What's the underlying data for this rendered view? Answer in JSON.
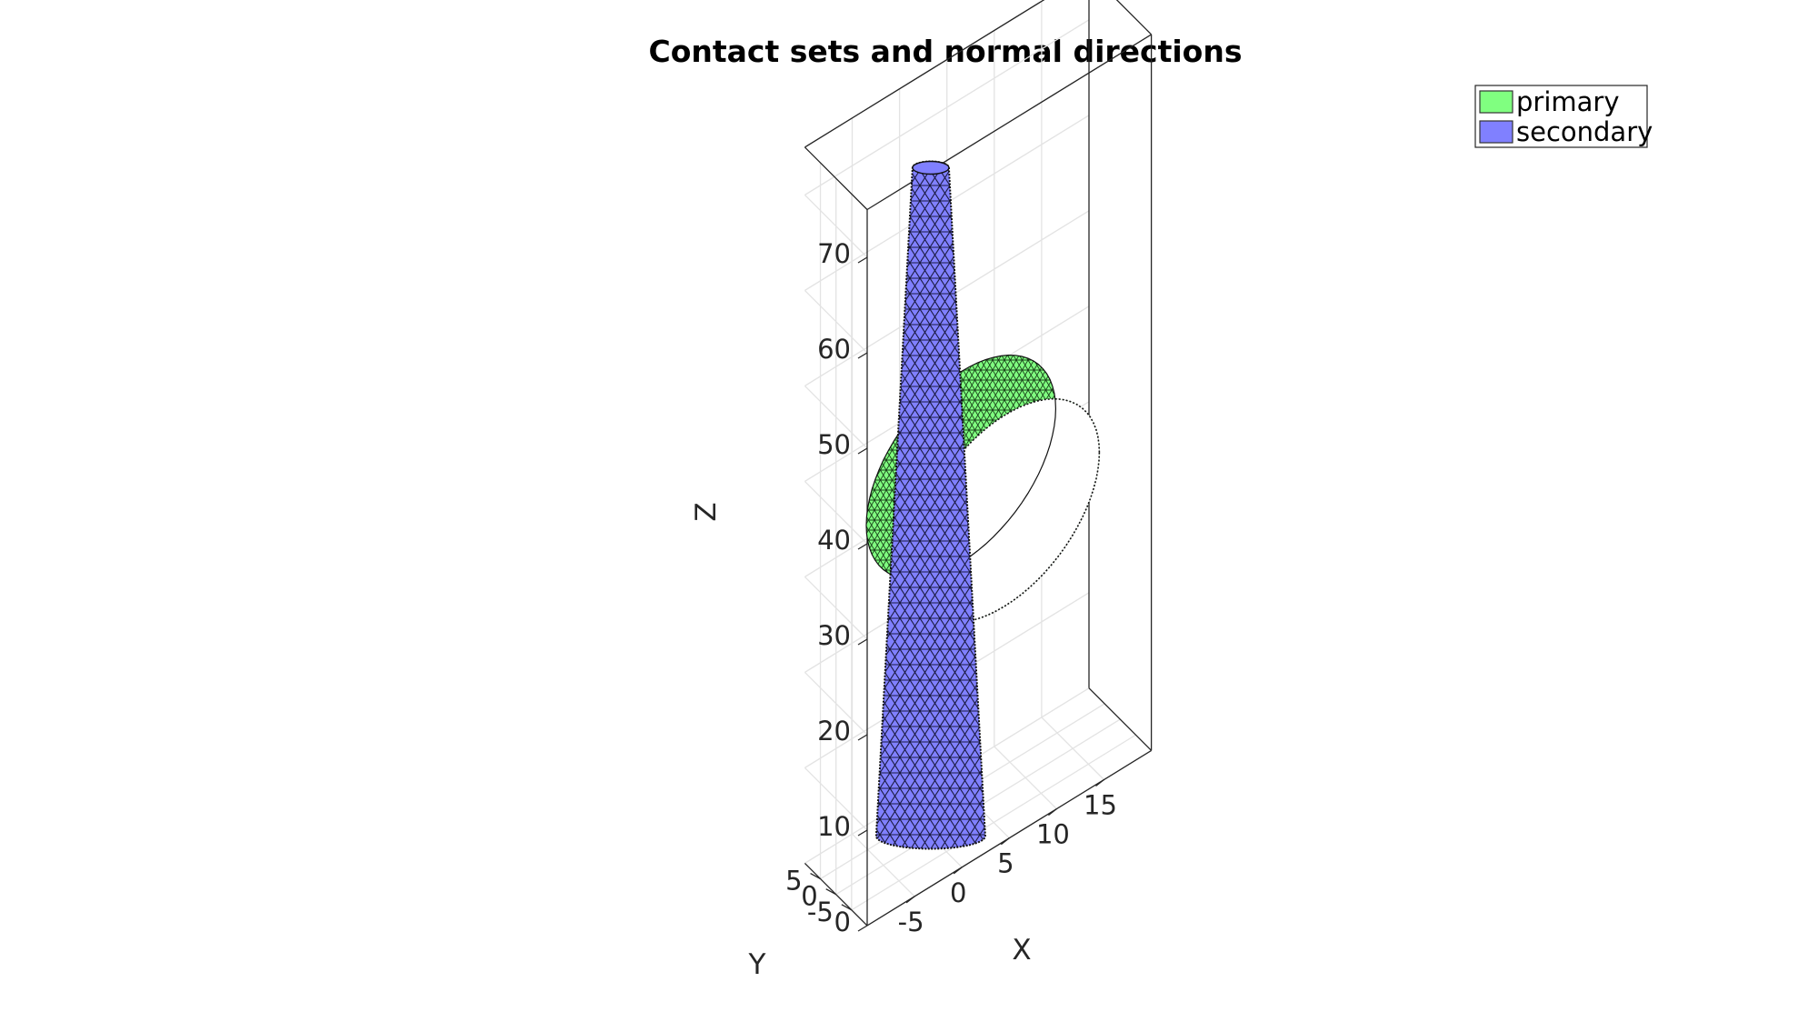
{
  "chart_data": {
    "type": "surface3d",
    "title": "Contact sets and normal directions",
    "xlabel": "X",
    "ylabel": "Y",
    "zlabel": "Z",
    "xlim": [
      -10,
      20
    ],
    "ylim": [
      -10,
      10
    ],
    "zlim": [
      0,
      75
    ],
    "x_ticks": [
      "-5",
      "0",
      "5",
      "10",
      "15"
    ],
    "y_ticks": [
      "5",
      "0",
      "-5"
    ],
    "z_ticks": [
      "0",
      "10",
      "20",
      "30",
      "40",
      "50",
      "60",
      "70"
    ],
    "grid": true,
    "legend_position": "top-right",
    "series": [
      {
        "name": "primary",
        "color": "#80ff80",
        "shape": "hollow-cylinder",
        "axis": "Y",
        "center": [
          5.5,
          0,
          33
        ],
        "radius": 10,
        "length": 14
      },
      {
        "name": "secondary",
        "color": "#8080ff",
        "shape": "tapered-cylinder",
        "axis": "Z",
        "base_radius": 6,
        "top_radius": 2,
        "z_range": [
          0,
          70
        ]
      }
    ]
  }
}
